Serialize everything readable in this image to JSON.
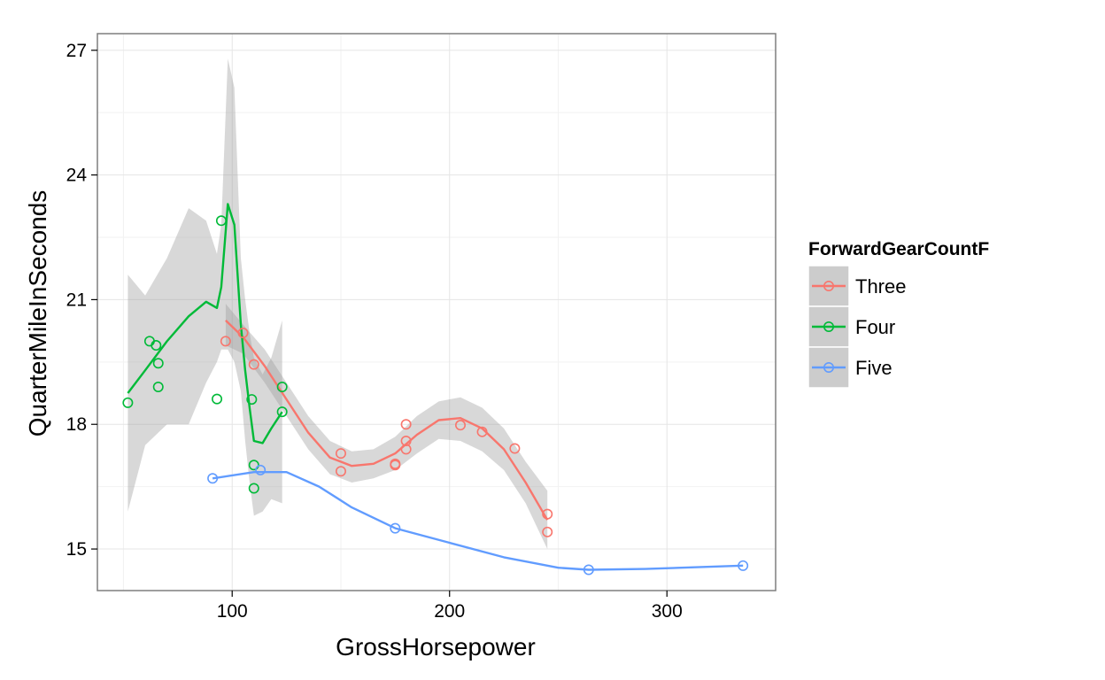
{
  "chart_data": {
    "type": "scatter",
    "xlabel": "GrossHorsepower",
    "ylabel": "QuarterMileInSeconds",
    "xlim": [
      38,
      350
    ],
    "ylim": [
      14.0,
      27.4
    ],
    "x_ticks": [
      100,
      200,
      300
    ],
    "y_ticks": [
      15,
      18,
      21,
      24,
      27
    ],
    "x_tick_labels": [
      "100",
      "200",
      "300"
    ],
    "y_tick_labels": [
      "15",
      "18",
      "21",
      "24",
      "27"
    ],
    "grid": true,
    "legend": {
      "title": "ForwardGearCountF",
      "position": "right"
    },
    "series": [
      {
        "name": "Three",
        "color": "#F8766D",
        "points": [
          [
            97,
            20.0
          ],
          [
            105,
            20.2
          ],
          [
            110,
            19.44
          ],
          [
            150,
            16.87
          ],
          [
            150,
            17.3
          ],
          [
            175,
            17.02
          ],
          [
            175,
            17.05
          ],
          [
            180,
            17.4
          ],
          [
            180,
            17.6
          ],
          [
            180,
            18.0
          ],
          [
            205,
            17.98
          ],
          [
            215,
            17.82
          ],
          [
            230,
            17.42
          ],
          [
            245,
            15.84
          ],
          [
            245,
            15.41
          ]
        ],
        "smooth": [
          [
            97,
            20.5
          ],
          [
            105,
            20.1
          ],
          [
            115,
            19.4
          ],
          [
            125,
            18.6
          ],
          [
            135,
            17.8
          ],
          [
            145,
            17.2
          ],
          [
            155,
            17.0
          ],
          [
            165,
            17.05
          ],
          [
            175,
            17.3
          ],
          [
            185,
            17.75
          ],
          [
            195,
            18.1
          ],
          [
            205,
            18.15
          ],
          [
            215,
            17.9
          ],
          [
            225,
            17.4
          ],
          [
            235,
            16.6
          ],
          [
            245,
            15.7
          ]
        ],
        "band": [
          [
            97,
            20.9,
            19.9
          ],
          [
            105,
            20.4,
            19.7
          ],
          [
            115,
            19.8,
            19.0
          ],
          [
            125,
            19.0,
            18.2
          ],
          [
            135,
            18.2,
            17.4
          ],
          [
            145,
            17.6,
            16.8
          ],
          [
            155,
            17.35,
            16.6
          ],
          [
            165,
            17.4,
            16.7
          ],
          [
            175,
            17.7,
            16.9
          ],
          [
            185,
            18.2,
            17.3
          ],
          [
            195,
            18.55,
            17.65
          ],
          [
            205,
            18.65,
            17.6
          ],
          [
            215,
            18.4,
            17.35
          ],
          [
            225,
            17.9,
            16.9
          ],
          [
            235,
            17.1,
            16.1
          ],
          [
            245,
            16.4,
            15.0
          ]
        ]
      },
      {
        "name": "Four",
        "color": "#00BA38",
        "points": [
          [
            52,
            18.52
          ],
          [
            62,
            20.0
          ],
          [
            65,
            19.9
          ],
          [
            66,
            19.47
          ],
          [
            66,
            18.9
          ],
          [
            93,
            18.61
          ],
          [
            95,
            22.9
          ],
          [
            109,
            18.6
          ],
          [
            110,
            16.46
          ],
          [
            110,
            17.02
          ],
          [
            123,
            18.3
          ],
          [
            123,
            18.9
          ]
        ],
        "smooth": [
          [
            52,
            18.75
          ],
          [
            60,
            19.3
          ],
          [
            70,
            20.0
          ],
          [
            80,
            20.6
          ],
          [
            88,
            20.95
          ],
          [
            93,
            20.8
          ],
          [
            95,
            21.3
          ],
          [
            98,
            23.3
          ],
          [
            101,
            22.8
          ],
          [
            104,
            20.4
          ],
          [
            106,
            19.3
          ],
          [
            108,
            18.4
          ],
          [
            110,
            17.6
          ],
          [
            114,
            17.55
          ],
          [
            118,
            17.9
          ],
          [
            123,
            18.3
          ]
        ],
        "band": [
          [
            52,
            21.6,
            15.9
          ],
          [
            60,
            21.1,
            17.5
          ],
          [
            70,
            22.0,
            18.0
          ],
          [
            80,
            23.2,
            18.0
          ],
          [
            88,
            22.9,
            19.0
          ],
          [
            93,
            22.1,
            19.5
          ],
          [
            95,
            22.8,
            19.8
          ],
          [
            98,
            26.8,
            19.8
          ],
          [
            101,
            26.1,
            19.5
          ],
          [
            104,
            22.0,
            18.8
          ],
          [
            106,
            21.0,
            17.6
          ],
          [
            108,
            20.2,
            16.6
          ],
          [
            110,
            19.6,
            15.8
          ],
          [
            114,
            19.2,
            15.9
          ],
          [
            118,
            19.6,
            16.2
          ],
          [
            123,
            20.5,
            16.1
          ]
        ]
      },
      {
        "name": "Five",
        "color": "#619CFF",
        "points": [
          [
            91,
            16.7
          ],
          [
            113,
            16.9
          ],
          [
            175,
            15.5
          ],
          [
            264,
            14.5
          ],
          [
            335,
            14.6
          ]
        ],
        "smooth": [
          [
            91,
            16.7
          ],
          [
            110,
            16.85
          ],
          [
            125,
            16.85
          ],
          [
            140,
            16.5
          ],
          [
            155,
            16.0
          ],
          [
            175,
            15.5
          ],
          [
            200,
            15.15
          ],
          [
            225,
            14.8
          ],
          [
            250,
            14.55
          ],
          [
            264,
            14.5
          ],
          [
            290,
            14.52
          ],
          [
            335,
            14.6
          ]
        ],
        "band": []
      }
    ]
  }
}
